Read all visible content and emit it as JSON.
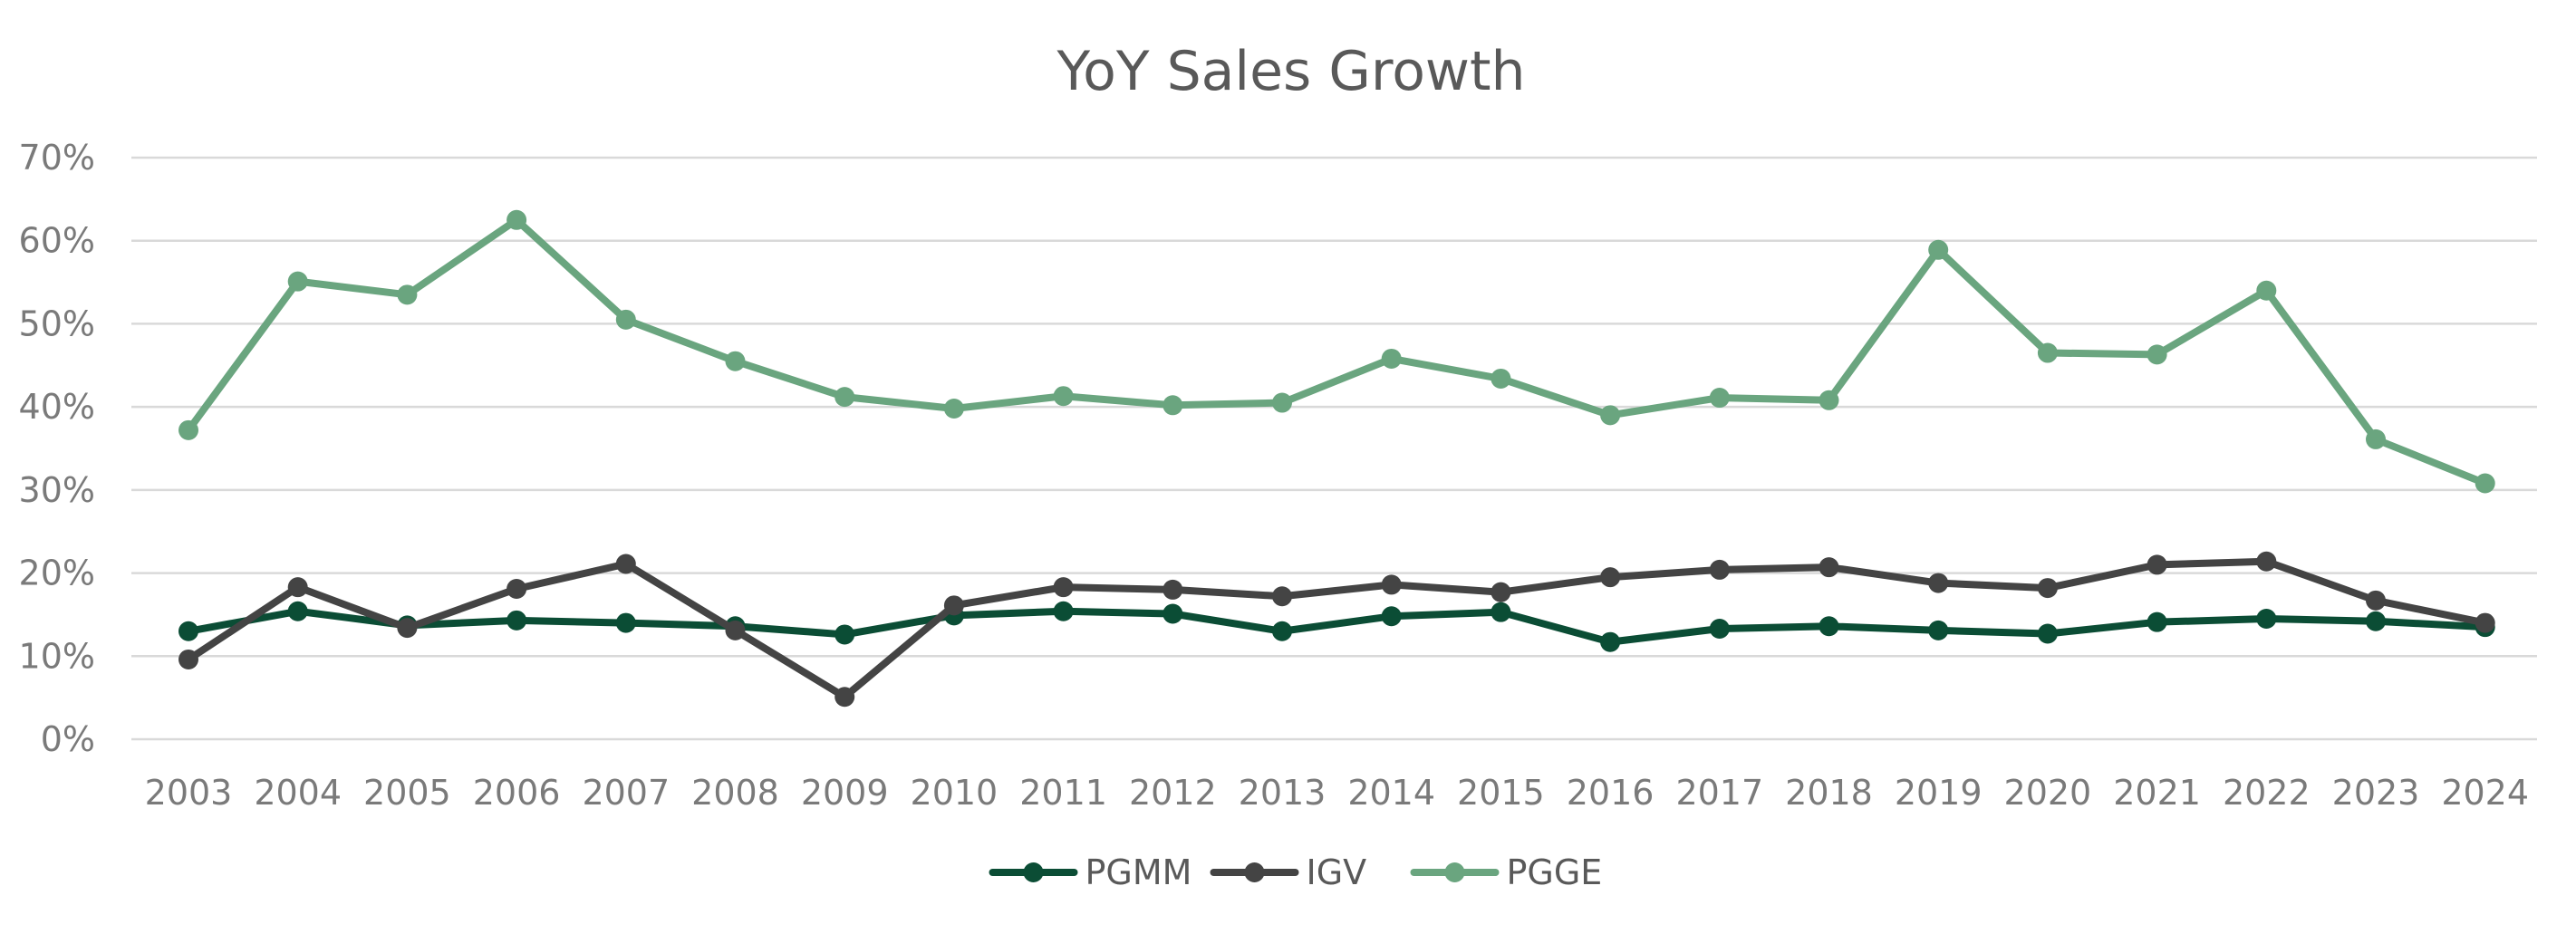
{
  "chart_data": {
    "type": "line",
    "title": "YoY Sales Growth",
    "xlabel": "",
    "ylabel": "",
    "categories": [
      "2003",
      "2004",
      "2005",
      "2006",
      "2007",
      "2008",
      "2009",
      "2010",
      "2011",
      "2012",
      "2013",
      "2014",
      "2015",
      "2016",
      "2017",
      "2018",
      "2019",
      "2020",
      "2021",
      "2022",
      "2023",
      "2024"
    ],
    "y_ticks": [
      0,
      10,
      20,
      30,
      40,
      50,
      60,
      70
    ],
    "y_tick_labels": [
      "0%",
      "10%",
      "20%",
      "30%",
      "40%",
      "50%",
      "60%",
      "70%"
    ],
    "ylim": [
      0,
      70
    ],
    "grid": true,
    "legend_position": "bottom",
    "series": [
      {
        "name": "PGMM",
        "color": "#0b4d35",
        "values": [
          13.0,
          15.4,
          13.7,
          14.3,
          14.0,
          13.6,
          12.6,
          14.9,
          15.4,
          15.1,
          13.0,
          14.8,
          15.3,
          11.7,
          13.3,
          13.6,
          13.1,
          12.7,
          14.1,
          14.5,
          14.2,
          13.5
        ]
      },
      {
        "name": "IGV",
        "color": "#444444",
        "values": [
          9.6,
          18.3,
          13.4,
          18.1,
          21.1,
          13.1,
          5.1,
          16.1,
          18.3,
          18.0,
          17.2,
          18.6,
          17.7,
          19.5,
          20.4,
          20.7,
          18.8,
          18.2,
          21.0,
          21.4,
          16.7,
          14.0
        ]
      },
      {
        "name": "PGGE",
        "color": "#6aa57f",
        "values": [
          37.2,
          55.1,
          53.5,
          62.5,
          50.5,
          45.5,
          41.2,
          39.8,
          41.3,
          40.2,
          40.5,
          45.8,
          43.4,
          39.0,
          41.1,
          40.8,
          58.9,
          46.5,
          46.3,
          54.0,
          36.1,
          30.8
        ]
      }
    ]
  }
}
